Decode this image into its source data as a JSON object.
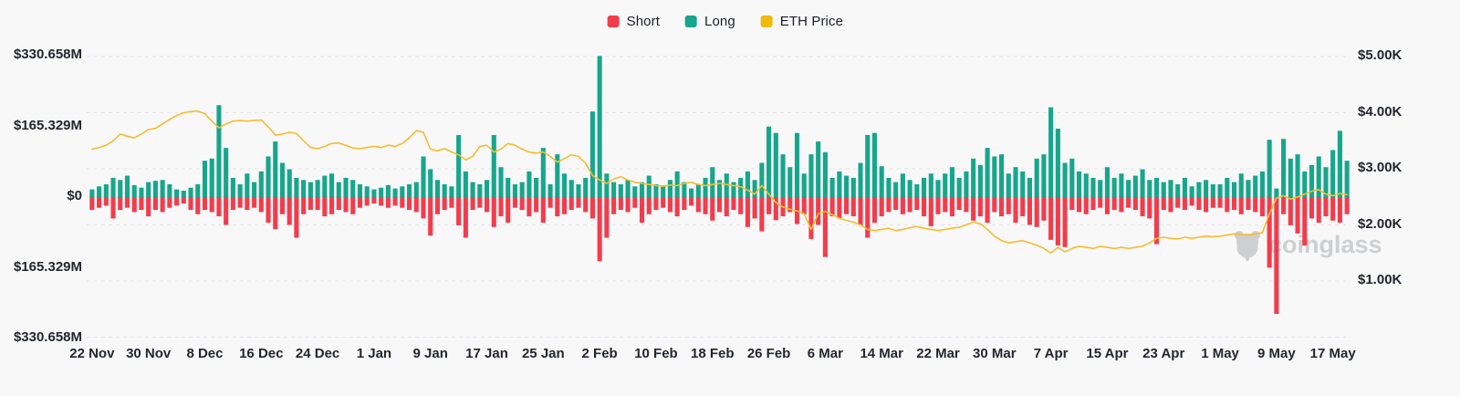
{
  "page": {
    "background": "#f8f8f9"
  },
  "legend": {
    "items": [
      {
        "label": "Short",
        "color": "#f23c4c"
      },
      {
        "label": "Long",
        "color": "#17a68c"
      },
      {
        "label": "ETH Price",
        "color": "#f0b90b"
      }
    ]
  },
  "watermark": {
    "text": "coinglass"
  },
  "chart_data": {
    "type": "bar+line",
    "description": "Daily ETH long/short liquidations (bars, left axis, USD millions) with ETH price overlay (line, right axis, USD thousands)",
    "legend_position": "top-center",
    "grid": "horizontal-dashed",
    "x_start_label": "22 Nov",
    "x_tick_interval_days": 8,
    "x_tick_labels": [
      "22 Nov",
      "30 Nov",
      "8 Dec",
      "16 Dec",
      "24 Dec",
      "1 Jan",
      "9 Jan",
      "17 Jan",
      "25 Jan",
      "2 Feb",
      "10 Feb",
      "18 Feb",
      "26 Feb",
      "6 Mar",
      "14 Mar",
      "22 Mar",
      "30 Mar",
      "7 Apr",
      "15 Apr",
      "23 Apr",
      "1 May",
      "9 May",
      "17 May"
    ],
    "y_axis_left": {
      "tick_labels": [
        "$330.658M",
        "$165.329M",
        "$0",
        "$165.329M",
        "$330.658M"
      ],
      "tick_values_m": [
        330.658,
        165.329,
        0,
        -165.329,
        -330.658
      ]
    },
    "y_axis_right": {
      "tick_labels": [
        "$5.00K",
        "$4.00K",
        "$3.00K",
        "$2.00K",
        "$1.00K"
      ],
      "tick_values_k": [
        5,
        4,
        3,
        2,
        1
      ]
    },
    "series": [
      {
        "name": "Long",
        "type": "bar",
        "axis": "left",
        "unit": "USD_M",
        "color": "#17a68c",
        "values": [
          18,
          25,
          30,
          45,
          40,
          50,
          28,
          22,
          35,
          38,
          40,
          30,
          18,
          15,
          22,
          30,
          85,
          90,
          215,
          115,
          45,
          30,
          55,
          35,
          60,
          95,
          130,
          80,
          65,
          45,
          40,
          35,
          40,
          50,
          55,
          35,
          45,
          40,
          30,
          25,
          18,
          22,
          28,
          20,
          25,
          30,
          35,
          95,
          65,
          40,
          30,
          25,
          145,
          60,
          35,
          30,
          40,
          145,
          70,
          45,
          30,
          35,
          60,
          45,
          115,
          30,
          100,
          55,
          40,
          30,
          45,
          200,
          330,
          55,
          35,
          30,
          40,
          25,
          35,
          50,
          30,
          25,
          40,
          60,
          35,
          20,
          30,
          45,
          70,
          40,
          55,
          35,
          45,
          60,
          40,
          80,
          165,
          150,
          100,
          70,
          150,
          55,
          100,
          130,
          105,
          45,
          60,
          50,
          45,
          80,
          145,
          150,
          72,
          45,
          35,
          55,
          40,
          30,
          45,
          55,
          40,
          55,
          70,
          45,
          60,
          90,
          75,
          115,
          95,
          100,
          55,
          70,
          60,
          45,
          90,
          100,
          210,
          160,
          80,
          90,
          60,
          55,
          45,
          40,
          70,
          45,
          55,
          40,
          50,
          65,
          40,
          45,
          35,
          40,
          30,
          45,
          25,
          35,
          40,
          30,
          30,
          45,
          35,
          55,
          40,
          50,
          60,
          134,
          20,
          136,
          90,
          100,
          60,
          75,
          95,
          70,
          110,
          155,
          85
        ]
      },
      {
        "name": "Short",
        "type": "bar",
        "axis": "left",
        "unit": "USD_M",
        "color": "#f23c4c",
        "values": [
          -30,
          -25,
          -20,
          -50,
          -30,
          -25,
          -35,
          -30,
          -45,
          -30,
          -35,
          -25,
          -20,
          -15,
          -30,
          -40,
          -30,
          -35,
          -45,
          -65,
          -30,
          -25,
          -30,
          -25,
          -35,
          -60,
          -75,
          -40,
          -65,
          -95,
          -40,
          -30,
          -30,
          -45,
          -40,
          -30,
          -35,
          -40,
          -25,
          -20,
          -15,
          -20,
          -25,
          -20,
          -25,
          -30,
          -35,
          -50,
          -90,
          -40,
          -30,
          -25,
          -66,
          -95,
          -30,
          -25,
          -35,
          -70,
          -45,
          -60,
          -25,
          -30,
          -45,
          -35,
          -60,
          -25,
          -45,
          -40,
          -30,
          -25,
          -35,
          -50,
          -150,
          -95,
          -40,
          -30,
          -35,
          -25,
          -60,
          -40,
          -30,
          -25,
          -35,
          -45,
          -30,
          -20,
          -35,
          -40,
          -55,
          -35,
          -45,
          -30,
          -40,
          -70,
          -50,
          -80,
          -40,
          -54,
          -45,
          -35,
          -63,
          -40,
          -98,
          -65,
          -140,
          -45,
          -50,
          -40,
          -45,
          -65,
          -95,
          -60,
          -45,
          -35,
          -30,
          -40,
          -35,
          -30,
          -45,
          -68,
          -40,
          -35,
          -45,
          -30,
          -35,
          -55,
          -45,
          -60,
          -35,
          -45,
          -40,
          -60,
          -45,
          -65,
          -70,
          -55,
          -100,
          -113,
          -117,
          -30,
          -35,
          -40,
          -30,
          -25,
          -40,
          -30,
          -35,
          -25,
          -30,
          -45,
          -50,
          -110,
          -30,
          -35,
          -25,
          -30,
          -20,
          -30,
          -35,
          -25,
          -25,
          -35,
          -30,
          -40,
          -30,
          -35,
          -45,
          -165,
          -273,
          -40,
          -66,
          -85,
          -113,
          -50,
          -60,
          -45,
          -55,
          -60,
          -40
        ]
      },
      {
        "name": "ETH Price",
        "type": "line",
        "axis": "right",
        "unit": "USD_K",
        "color": "#f5bd2e",
        "values": [
          3.35,
          3.38,
          3.42,
          3.5,
          3.62,
          3.58,
          3.55,
          3.62,
          3.7,
          3.72,
          3.8,
          3.88,
          3.95,
          4.0,
          4.02,
          4.03,
          3.98,
          3.85,
          3.73,
          3.8,
          3.85,
          3.86,
          3.85,
          3.86,
          3.87,
          3.75,
          3.6,
          3.62,
          3.65,
          3.63,
          3.5,
          3.38,
          3.36,
          3.4,
          3.45,
          3.46,
          3.42,
          3.37,
          3.36,
          3.38,
          3.4,
          3.38,
          3.42,
          3.4,
          3.45,
          3.55,
          3.68,
          3.65,
          3.35,
          3.32,
          3.36,
          3.3,
          3.25,
          3.16,
          3.22,
          3.4,
          3.42,
          3.3,
          3.35,
          3.45,
          3.42,
          3.35,
          3.3,
          3.28,
          3.3,
          3.22,
          3.12,
          3.18,
          3.25,
          3.22,
          3.1,
          2.88,
          2.8,
          2.74,
          2.82,
          2.86,
          2.8,
          2.76,
          2.74,
          2.72,
          2.7,
          2.69,
          2.71,
          2.7,
          2.74,
          2.76,
          2.72,
          2.7,
          2.72,
          2.74,
          2.72,
          2.7,
          2.68,
          2.62,
          2.55,
          2.7,
          2.55,
          2.4,
          2.32,
          2.28,
          2.25,
          2.2,
          1.92,
          2.2,
          2.24,
          2.18,
          2.12,
          2.08,
          2.05,
          2.0,
          1.92,
          1.9,
          1.92,
          1.94,
          1.9,
          1.92,
          1.95,
          1.97,
          1.94,
          1.92,
          1.9,
          1.92,
          1.94,
          1.96,
          2.0,
          2.05,
          2.02,
          1.92,
          1.8,
          1.72,
          1.68,
          1.7,
          1.72,
          1.68,
          1.64,
          1.58,
          1.5,
          1.6,
          1.52,
          1.58,
          1.62,
          1.6,
          1.58,
          1.62,
          1.6,
          1.58,
          1.6,
          1.58,
          1.6,
          1.62,
          1.68,
          1.76,
          1.78,
          1.76,
          1.75,
          1.78,
          1.76,
          1.78,
          1.8,
          1.79,
          1.8,
          1.82,
          1.84,
          1.83,
          1.82,
          1.84,
          1.86,
          2.2,
          2.48,
          2.52,
          2.46,
          2.5,
          2.55,
          2.6,
          2.63,
          2.55,
          2.52,
          2.56,
          2.54
        ]
      }
    ]
  }
}
